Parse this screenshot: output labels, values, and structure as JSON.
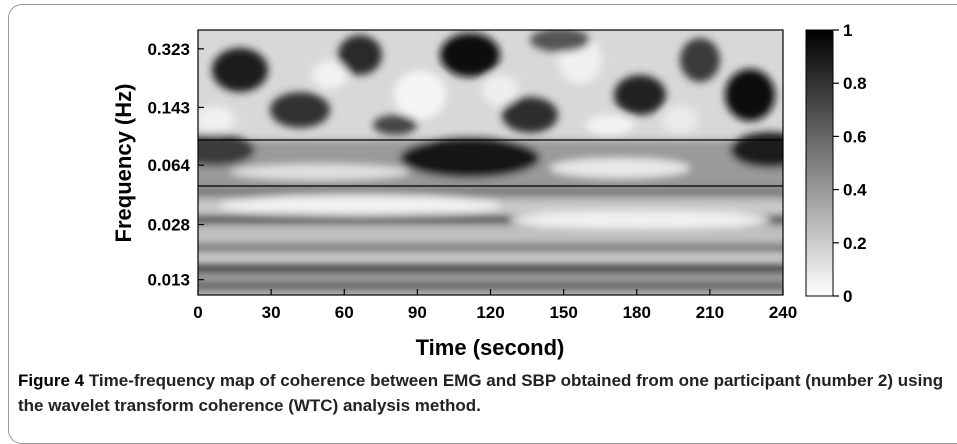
{
  "chart_data": {
    "type": "heatmap",
    "title": "",
    "xlabel": "Time (second)",
    "ylabel": "Frequency (Hz)",
    "xlim": [
      0,
      240
    ],
    "x_ticks": [
      "0",
      "30",
      "60",
      "90",
      "120",
      "150",
      "180",
      "210",
      "240"
    ],
    "y_scale": "log",
    "ylim": [
      0.0105,
      0.42
    ],
    "y_ticks": [
      "0.323",
      "0.143",
      "0.064",
      "0.028",
      "0.013"
    ],
    "y_tick_values": [
      0.323,
      0.143,
      0.064,
      0.028,
      0.013
    ],
    "colormap": "gray_reversed",
    "colorbar_range": [
      0,
      1
    ],
    "colorbar_ticks": [
      "0",
      "0.2",
      "0.4",
      "0.6",
      "0.8",
      "1"
    ],
    "band_lines_hz": [
      0.1,
      0.048
    ],
    "features": [
      {
        "t": 110,
        "f": 0.07,
        "coherence": 0.85
      },
      {
        "t": 230,
        "f": 0.085,
        "coherence": 0.8
      },
      {
        "t": 10,
        "f": 0.085,
        "coherence": 0.7
      },
      {
        "t": 60,
        "f": 0.02,
        "coherence": 0.75
      },
      {
        "t": 180,
        "f": 0.02,
        "coherence": 0.75
      }
    ]
  },
  "caption": {
    "label": "Figure 4",
    "text": "Time-frequency map of coherence between EMG and SBP obtained from one participant (number 2) using the wavelet transform coherence (WTC) analysis method."
  }
}
